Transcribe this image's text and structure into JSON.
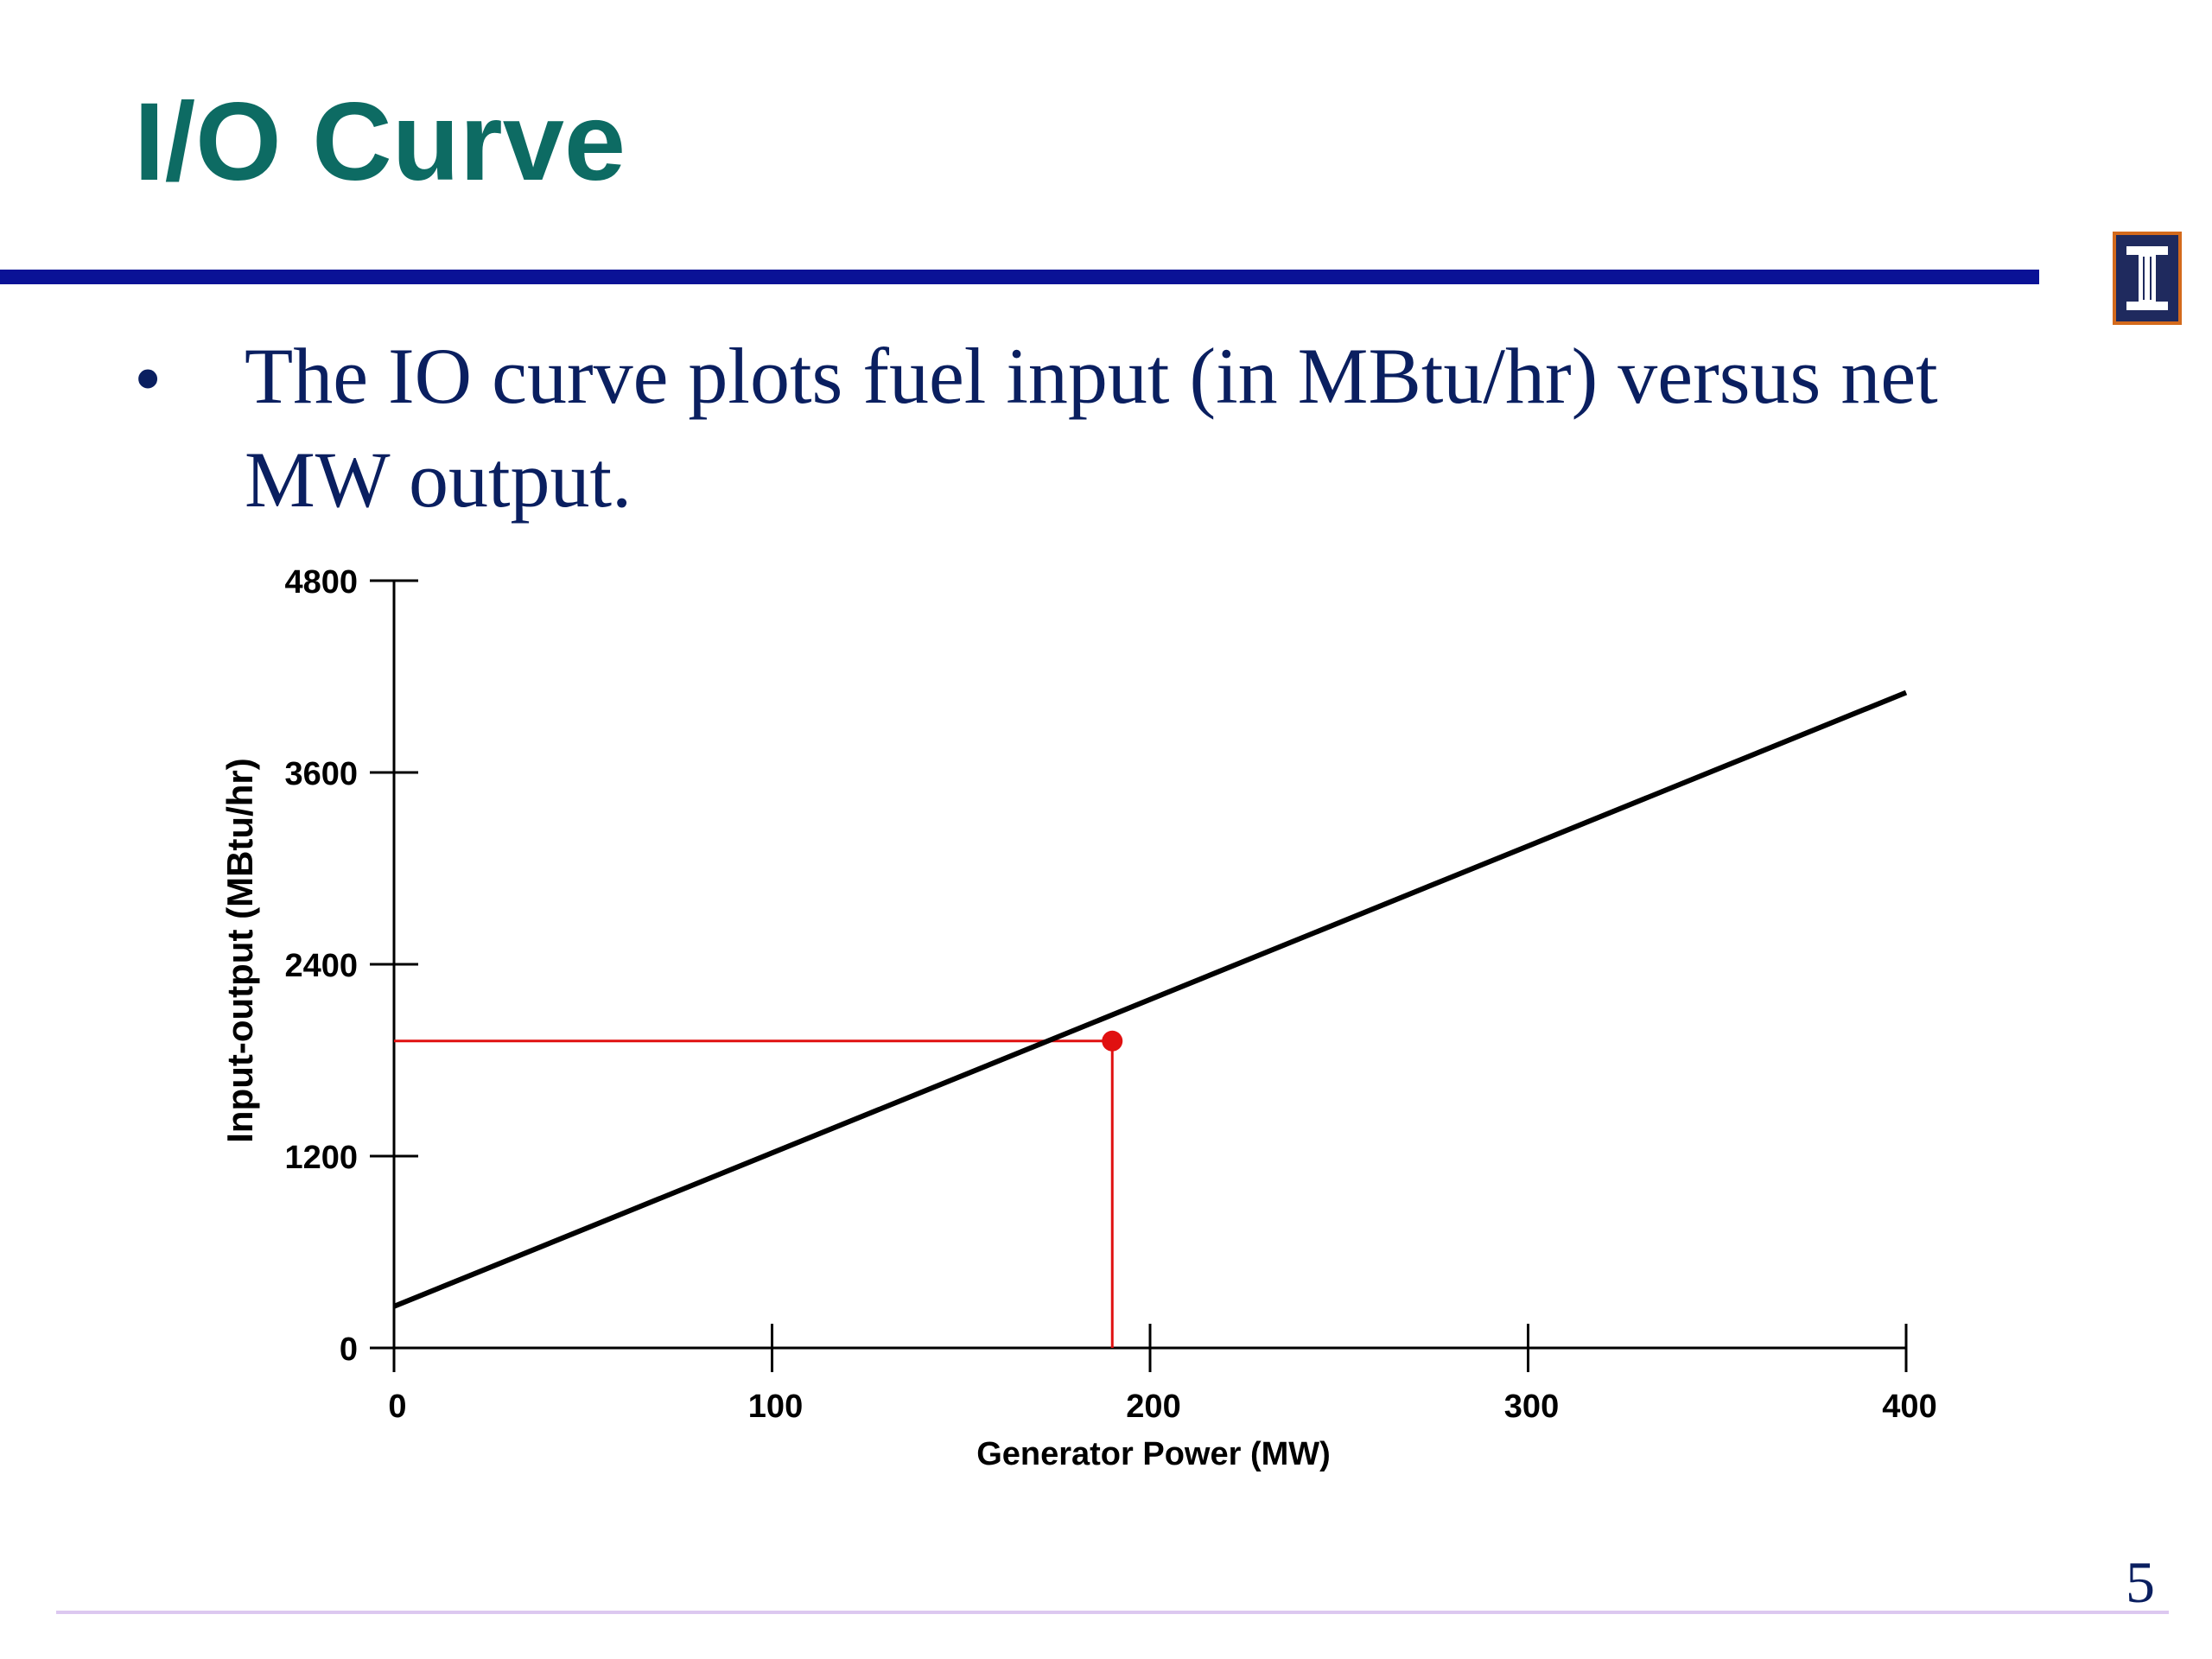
{
  "slide": {
    "title": "I/O Curve",
    "bullet_symbol": "•",
    "bullet_text": "The IO curve plots fuel input (in MBtu/hr) versus net MW output.",
    "page_number": "5"
  },
  "logo": {
    "letter": "I",
    "colors": {
      "background": "#1f2a5e",
      "border": "#d46a1c"
    }
  },
  "colors": {
    "title": "#0d6b63",
    "title_rule": "#0a1296",
    "body_text": "#0a1f60",
    "curve": "#000000",
    "highlight": "#e01010",
    "footer_rule": "#dcc8f0"
  },
  "chart_data": {
    "type": "line",
    "xlabel": "Generator Power (MW)",
    "ylabel": "Input-output (MBtu/hr)",
    "xlim": [
      0,
      400
    ],
    "ylim": [
      0,
      4800
    ],
    "x_ticks": [
      0,
      100,
      200,
      300,
      400
    ],
    "y_ticks": [
      0,
      1200,
      2400,
      3600,
      4800
    ],
    "x_tick_labels": [
      "0",
      "100",
      "200",
      "300",
      "400"
    ],
    "y_tick_labels": [
      "0",
      "1200",
      "2400",
      "3600",
      "4800"
    ],
    "grid": false,
    "series": [
      {
        "x": [
          0,
          400
        ],
        "y": [
          260,
          4100
        ]
      }
    ],
    "highlight_point": {
      "x": 190,
      "y": 1920
    }
  }
}
